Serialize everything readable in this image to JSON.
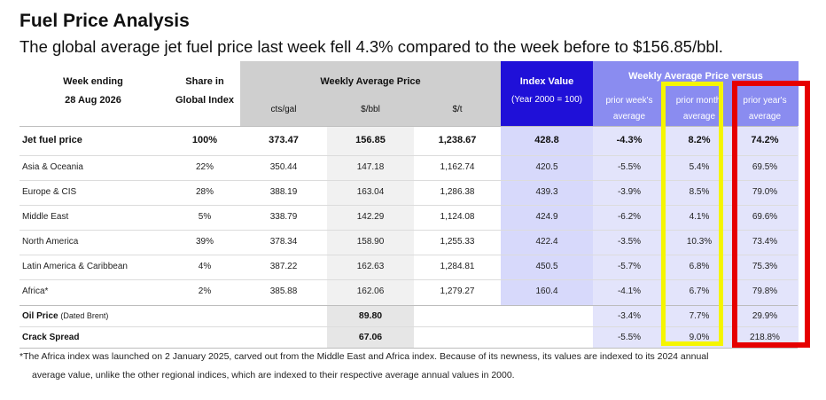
{
  "title": "Fuel Price Analysis",
  "subtitle": "The global average jet fuel price last week fell 4.3% compared to the week before to $156.85/bbl.",
  "header": {
    "week_ending_label": "Week ending",
    "week_ending_date": "28 Aug 2026",
    "share_label_1": "Share in",
    "share_label_2": "Global Index",
    "weekly_avg_label": "Weekly Average Price",
    "unit_cts": "cts/gal",
    "unit_bbl": "$/bbl",
    "unit_t": "$/t",
    "index_label": "Index Value",
    "index_sub": "(Year 2000 = 100)",
    "versus_label": "Weekly Average Price versus",
    "prior_week_1": "prior week's",
    "prior_week_2": "average",
    "prior_month_1": "prior month'",
    "prior_month_2": "average",
    "prior_year_1": "prior year's",
    "prior_year_2": "average"
  },
  "rows": [
    {
      "name": "Jet fuel price",
      "share": "100%",
      "cts": "373.47",
      "bbl": "156.85",
      "t": "1,238.67",
      "index": "428.8",
      "week": "-4.3%",
      "month": "8.2%",
      "year": "74.2%"
    },
    {
      "name": "Asia & Oceania",
      "share": "22%",
      "cts": "350.44",
      "bbl": "147.18",
      "t": "1,162.74",
      "index": "420.5",
      "week": "-5.5%",
      "month": "5.4%",
      "year": "69.5%"
    },
    {
      "name": "Europe & CIS",
      "share": "28%",
      "cts": "388.19",
      "bbl": "163.04",
      "t": "1,286.38",
      "index": "439.3",
      "week": "-3.9%",
      "month": "8.5%",
      "year": "79.0%"
    },
    {
      "name": "Middle East",
      "share": "5%",
      "cts": "338.79",
      "bbl": "142.29",
      "t": "1,124.08",
      "index": "424.9",
      "week": "-6.2%",
      "month": "4.1%",
      "year": "69.6%"
    },
    {
      "name": "North America",
      "share": "39%",
      "cts": "378.34",
      "bbl": "158.90",
      "t": "1,255.33",
      "index": "422.4",
      "week": "-3.5%",
      "month": "10.3%",
      "year": "73.4%"
    },
    {
      "name": "Latin America & Caribbean",
      "share": "4%",
      "cts": "387.22",
      "bbl": "162.63",
      "t": "1,284.81",
      "index": "450.5",
      "week": "-5.7%",
      "month": "6.8%",
      "year": "75.3%"
    },
    {
      "name": "Africa*",
      "share": "2%",
      "cts": "385.88",
      "bbl": "162.06",
      "t": "1,279.27",
      "index": "160.4",
      "week": "-4.1%",
      "month": "6.7%",
      "year": "79.8%"
    }
  ],
  "oil": {
    "name": "Oil Price",
    "name_sub": "(Dated Brent)",
    "bbl": "89.80",
    "week": "-3.4%",
    "month": "7.7%",
    "year": "29.9%"
  },
  "crack": {
    "name": "Crack Spread",
    "bbl": "67.06",
    "week": "-5.5%",
    "month": "9.0%",
    "year": "218.8%"
  },
  "footnote_1": "*The Africa index was launched on 2 January 2025, carved out from the Middle East and Africa index. Because of its newness, its values are indexed to its 2024 annual",
  "footnote_2": "average value, unlike the other regional indices, which are indexed to their respective average annual values in 2000.",
  "colors": {
    "index_header": "#1f10d8",
    "versus_header": "#8a8cf0",
    "highlight_yellow": "#f5f500",
    "highlight_red": "#e60000"
  }
}
